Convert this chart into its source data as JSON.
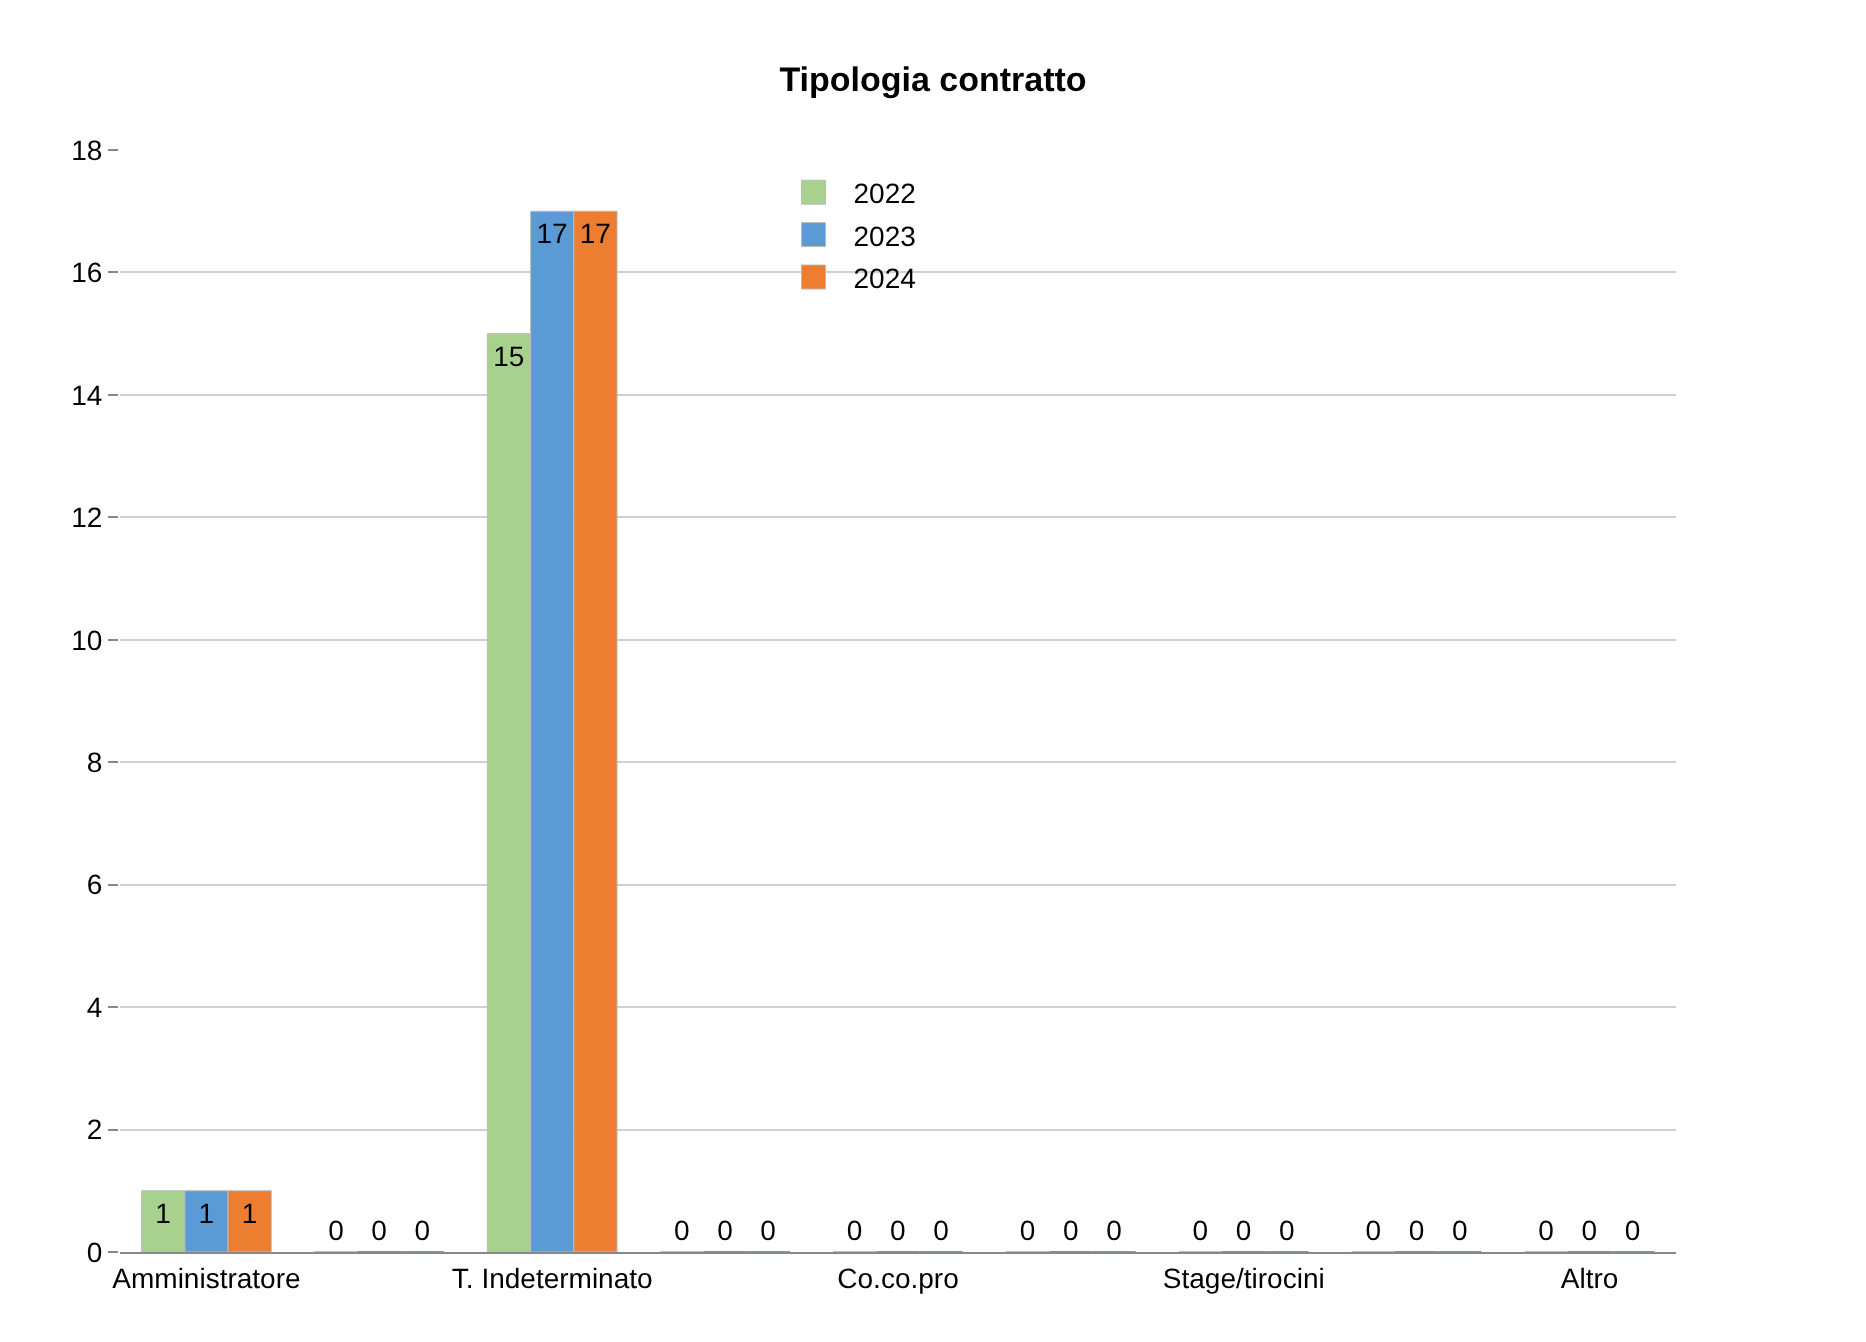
{
  "chart_data": {
    "type": "bar",
    "title": "Tipologia contratto",
    "categories": [
      "Amministratore",
      null,
      "T. Indeterminato",
      null,
      "Co.co.pro",
      null,
      "Stage/tirocini",
      null,
      "Altro"
    ],
    "series": [
      {
        "name": "2022",
        "color": "#a9d18e",
        "values": [
          1,
          0,
          15,
          0,
          0,
          0,
          0,
          0,
          0
        ]
      },
      {
        "name": "2023",
        "color": "#5b9bd5",
        "values": [
          1,
          0,
          17,
          0,
          0,
          0,
          0,
          0,
          0
        ]
      },
      {
        "name": "2024",
        "color": "#ed7d31",
        "values": [
          1,
          0,
          17,
          0,
          0,
          0,
          0,
          0,
          0
        ]
      }
    ],
    "ylim": [
      0,
      18
    ],
    "yticks": [
      0,
      2,
      4,
      6,
      8,
      10,
      12,
      14,
      16,
      18
    ],
    "grid": "y",
    "legend": "top",
    "data_labels": true
  }
}
